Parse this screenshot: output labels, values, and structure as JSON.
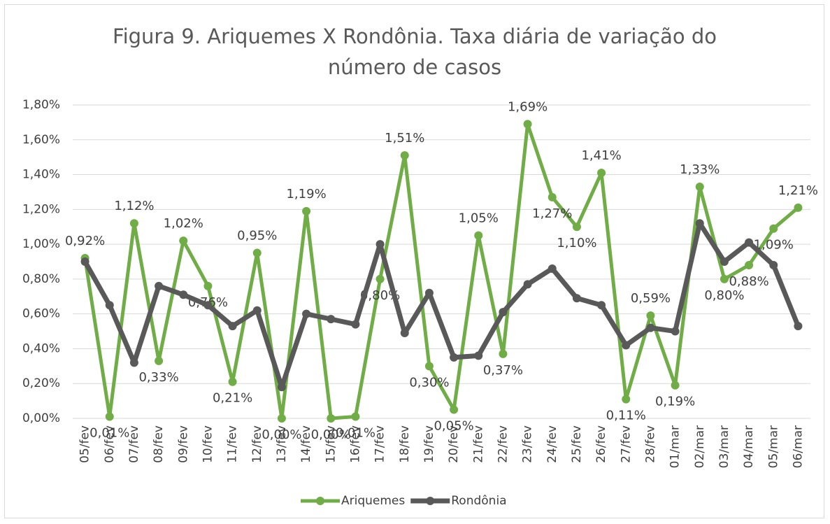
{
  "chart_data": {
    "type": "line",
    "title": "Figura 9. Ariquemes X Rondônia. Taxa diária de variação do número de casos",
    "categories": [
      "05/fev",
      "06/fev",
      "07/fev",
      "08/fev",
      "09/fev",
      "10/fev",
      "11/fev",
      "12/fev",
      "13/fev",
      "14/fev",
      "15/fev",
      "16/fev",
      "17/fev",
      "18/fev",
      "19/fev",
      "20/fev",
      "21/fev",
      "22/fev",
      "23/fev",
      "24/fev",
      "25/fev",
      "26/fev",
      "27/fev",
      "28/fev",
      "01/mar",
      "02/mar",
      "03/mar",
      "04/mar",
      "05/mar",
      "06/mar"
    ],
    "series": [
      {
        "name": "Ariquemes",
        "color": "#70ad47",
        "values": [
          0.92,
          0.01,
          1.12,
          0.33,
          1.02,
          0.76,
          0.21,
          0.95,
          0.0,
          1.19,
          0.0,
          0.01,
          0.8,
          1.51,
          0.3,
          0.05,
          1.05,
          0.37,
          1.69,
          1.27,
          1.1,
          1.41,
          0.11,
          0.59,
          0.19,
          1.33,
          0.8,
          0.88,
          1.09,
          1.21
        ],
        "value_labels": [
          "0,92%",
          "0,01%",
          "1,12%",
          "0,33%",
          "1,02%",
          "0,76%",
          "0,21%",
          "0,95%",
          "0,00%",
          "1,19%",
          "0,00%",
          "0,01%",
          "0,80%",
          "1,51%",
          "0,30%",
          "0,05%",
          "1,05%",
          "0,37%",
          "1,69%",
          "1,27%",
          "1,10%",
          "1,41%",
          "0,11%",
          "0,59%",
          "0,19%",
          "1,33%",
          "0,80%",
          "0,88%",
          "1,09%",
          "1,21%"
        ]
      },
      {
        "name": "Rondônia",
        "color": "#595959",
        "values": [
          0.9,
          0.65,
          0.32,
          0.76,
          0.71,
          0.65,
          0.53,
          0.62,
          0.18,
          0.6,
          0.57,
          0.54,
          1.0,
          0.49,
          0.72,
          0.35,
          0.36,
          0.61,
          0.77,
          0.86,
          0.69,
          0.65,
          0.42,
          0.52,
          0.5,
          1.12,
          0.9,
          1.01,
          0.88,
          0.53
        ]
      }
    ],
    "ylim": [
      0,
      1.8
    ],
    "yticks": [
      {
        "value": 0,
        "label": "0,00%"
      },
      {
        "value": 0.2,
        "label": "0,20%"
      },
      {
        "value": 0.4,
        "label": "0,40%"
      },
      {
        "value": 0.6,
        "label": "0,60%"
      },
      {
        "value": 0.8,
        "label": "0,80%"
      },
      {
        "value": 1,
        "label": "1,00%"
      },
      {
        "value": 1.2,
        "label": "1,20%"
      },
      {
        "value": 1.4,
        "label": "1,40%"
      },
      {
        "value": 1.6,
        "label": "1,60%"
      },
      {
        "value": 1.8,
        "label": "1,80%"
      }
    ],
    "grid": true,
    "legend": "bottom"
  }
}
